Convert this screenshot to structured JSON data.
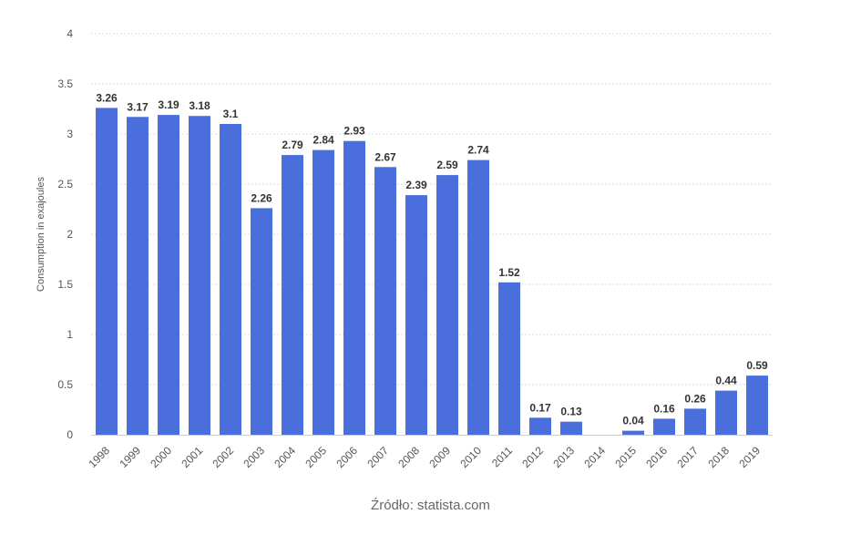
{
  "chart_data": {
    "type": "bar",
    "title": "",
    "xlabel": "",
    "ylabel": "Consumption in exajoules",
    "ylim": [
      0,
      4
    ],
    "yticks": [
      0,
      0.5,
      1,
      1.5,
      2,
      2.5,
      3,
      3.5,
      4
    ],
    "ytick_labels": [
      "0",
      "0.5",
      "1",
      "1.5",
      "2",
      "2.5",
      "3",
      "3.5",
      "4"
    ],
    "grid": true,
    "bar_color": "#4a6fdc",
    "categories": [
      "1998",
      "1999",
      "2000",
      "2001",
      "2002",
      "2003",
      "2004",
      "2005",
      "2006",
      "2007",
      "2008",
      "2009",
      "2010",
      "2011",
      "2012",
      "2013",
      "2014",
      "2015",
      "2016",
      "2017",
      "2018",
      "2019"
    ],
    "values": [
      3.26,
      3.17,
      3.19,
      3.18,
      3.1,
      2.26,
      2.79,
      2.84,
      2.93,
      2.67,
      2.39,
      2.59,
      2.74,
      1.52,
      0.17,
      0.13,
      0,
      0.04,
      0.16,
      0.26,
      0.44,
      0.59
    ],
    "data_labels": [
      "3.26",
      "3.17",
      "3.19",
      "3.18",
      "3.1",
      "2.26",
      "2.79",
      "2.84",
      "2.93",
      "2.67",
      "2.39",
      "2.59",
      "2.74",
      "1.52",
      "0.17",
      "0.13",
      "",
      "0.04",
      "0.16",
      "0.26",
      "0.44",
      "0.59"
    ]
  },
  "source_text": "Źródło: statista.com"
}
